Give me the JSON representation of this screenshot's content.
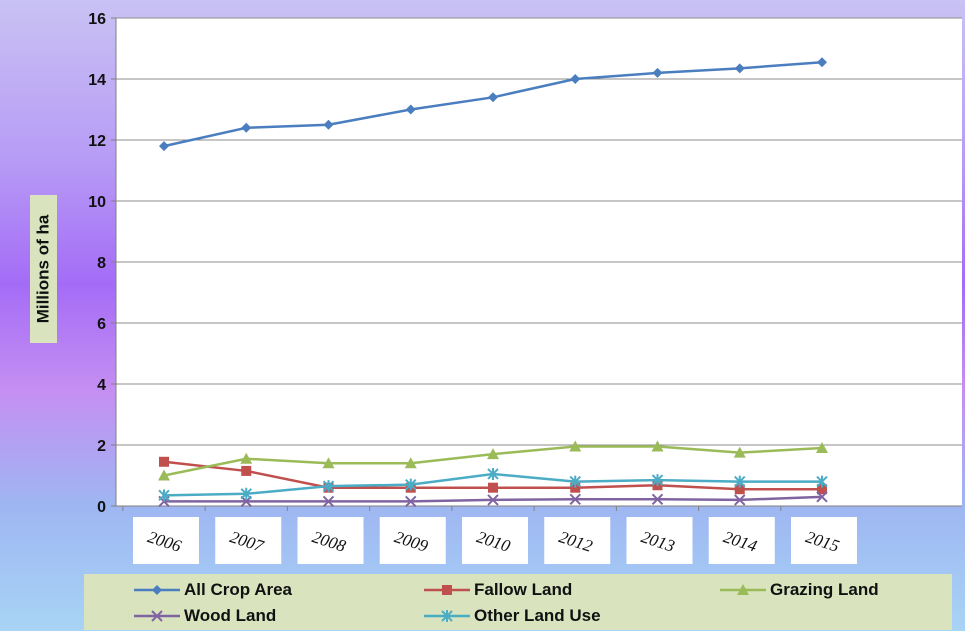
{
  "chart_data": {
    "type": "line",
    "title": "",
    "xlabel": "",
    "ylabel": "Millions of ha",
    "ylim": [
      0,
      16
    ],
    "yticks": [
      "0",
      "2",
      "4",
      "6",
      "8",
      "10",
      "12",
      "14",
      "16"
    ],
    "grid": true,
    "legend_position": "bottom",
    "categories": [
      "2006",
      "2007",
      "2008",
      "2009",
      "2010",
      "2012",
      "2013",
      "2014",
      "2015"
    ],
    "series": [
      {
        "name": "All Crop Area",
        "color": "#4a7ebf",
        "marker": "diamond",
        "values": [
          11.8,
          12.4,
          12.5,
          13.0,
          13.4,
          14.0,
          14.2,
          14.35,
          14.55
        ]
      },
      {
        "name": "Fallow Land",
        "color": "#c0504d",
        "marker": "square",
        "values": [
          1.45,
          1.15,
          0.6,
          0.6,
          0.6,
          0.6,
          0.68,
          0.55,
          0.55
        ]
      },
      {
        "name": "Grazing Land",
        "color": "#9bbb59",
        "marker": "triangle",
        "values": [
          1.0,
          1.55,
          1.4,
          1.4,
          1.7,
          1.95,
          1.95,
          1.75,
          1.9
        ]
      },
      {
        "name": "Wood Land",
        "color": "#8064a2",
        "marker": "x",
        "values": [
          0.15,
          0.15,
          0.15,
          0.15,
          0.2,
          0.22,
          0.22,
          0.2,
          0.3
        ]
      },
      {
        "name": "Other Land Use",
        "color": "#4bacc6",
        "marker": "star",
        "values": [
          0.35,
          0.4,
          0.65,
          0.7,
          1.05,
          0.8,
          0.85,
          0.8,
          0.8
        ]
      }
    ]
  }
}
